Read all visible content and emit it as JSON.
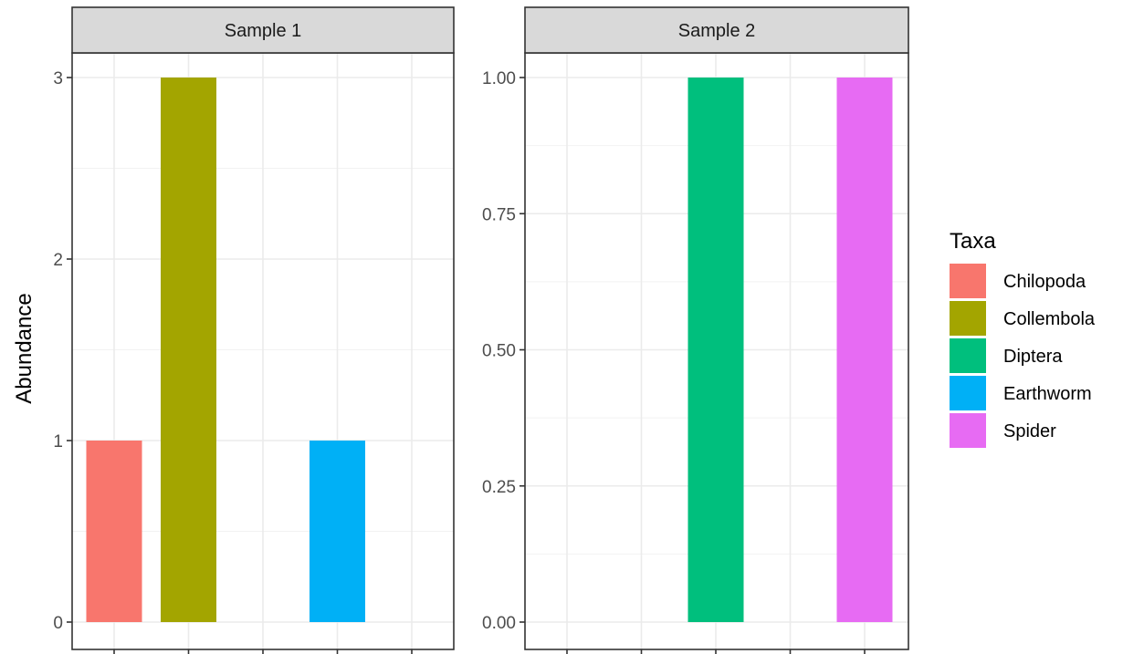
{
  "chart_data": {
    "type": "bar",
    "ylabel": "Abundance",
    "xlabel": "",
    "x_tick_labels_shown": false,
    "categories": [
      "Chilopoda",
      "Collembola",
      "Diptera",
      "Earthworm",
      "Spider"
    ],
    "colors": {
      "Chilopoda": "#F8766D",
      "Collembola": "#A3A500",
      "Diptera": "#00BF7D",
      "Earthworm": "#00B0F6",
      "Spider": "#E76BF3"
    },
    "legend": {
      "title": "Taxa",
      "placement": "right",
      "entries": [
        "Chilopoda",
        "Collembola",
        "Diptera",
        "Earthworm",
        "Spider"
      ]
    },
    "facets": [
      {
        "strip_label": "Sample 1",
        "ylim": [
          0,
          3
        ],
        "y_ticks": [
          0,
          1,
          2,
          3
        ],
        "y_tick_labels": [
          "0",
          "1",
          "2",
          "3"
        ],
        "values": [
          1,
          3,
          0,
          1,
          0
        ]
      },
      {
        "strip_label": "Sample 2",
        "ylim": [
          0,
          1
        ],
        "y_ticks": [
          0,
          0.25,
          0.5,
          0.75,
          1
        ],
        "y_tick_labels": [
          "0.00",
          "0.25",
          "0.50",
          "0.75",
          "1.00"
        ],
        "values": [
          0,
          0,
          1,
          0,
          1
        ]
      }
    ],
    "grid": true,
    "theme": "bw"
  }
}
